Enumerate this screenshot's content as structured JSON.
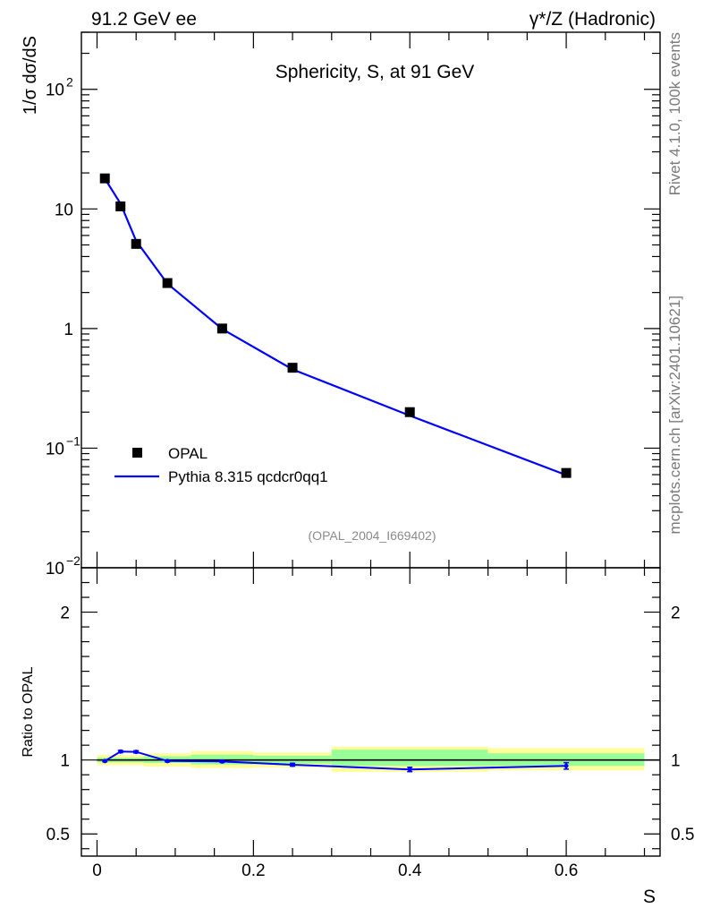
{
  "header": {
    "left": "91.2 GeV ee",
    "right": "γ*/Z (Hadronic)"
  },
  "side_labels": {
    "top": "Rivet 4.1.0,  100k events",
    "bottom": "mcplots.cern.ch [arXiv:2401.10621]"
  },
  "chart_data": [
    {
      "type": "scatter",
      "panel": "main",
      "title": "Sphericity, S, at 91 GeV",
      "ylabel": "1/σ   dσ/dS",
      "yscale": "log",
      "ylim": [
        0.01,
        300
      ],
      "xlim": [
        -0.02,
        0.72
      ],
      "y_ticks": [
        {
          "value": 0.01,
          "label": "10",
          "exp": "−2"
        },
        {
          "value": 0.1,
          "label": "10",
          "exp": "−1"
        },
        {
          "value": 1,
          "label": "1",
          "exp": ""
        },
        {
          "value": 10,
          "label": "10",
          "exp": ""
        },
        {
          "value": 100,
          "label": "10",
          "exp": "2"
        }
      ],
      "watermark": "(OPAL_2004_I669402)",
      "legend": {
        "position": "bottom-left",
        "entries": [
          "OPAL",
          "Pythia 8.315 qcdcr0qq1"
        ]
      },
      "series": [
        {
          "name": "OPAL",
          "kind": "markers",
          "color": "#000000",
          "x": [
            0.01,
            0.03,
            0.05,
            0.09,
            0.16,
            0.25,
            0.4,
            0.6
          ],
          "y": [
            18.0,
            10.5,
            5.1,
            2.4,
            1.0,
            0.47,
            0.2,
            0.062
          ]
        },
        {
          "name": "Pythia 8.315 qcdcr0qq1",
          "kind": "line",
          "color": "#0000ff",
          "x": [
            0.01,
            0.03,
            0.05,
            0.09,
            0.16,
            0.25,
            0.4,
            0.6
          ],
          "y": [
            17.9,
            11.1,
            5.4,
            2.37,
            0.99,
            0.455,
            0.187,
            0.0595
          ]
        }
      ]
    },
    {
      "type": "line",
      "panel": "ratio",
      "ylabel": "Ratio to OPAL",
      "xlabel": "S",
      "ylim": [
        0.35,
        2.3
      ],
      "xlim": [
        -0.02,
        0.72
      ],
      "x_ticks": [
        {
          "value": 0.0,
          "label": "0"
        },
        {
          "value": 0.2,
          "label": "0.2"
        },
        {
          "value": 0.4,
          "label": "0.4"
        },
        {
          "value": 0.6,
          "label": "0.6"
        }
      ],
      "y_ticks": [
        {
          "value": 0.5,
          "label": "0.5"
        },
        {
          "value": 1,
          "label": "1"
        },
        {
          "value": 2,
          "label": "2"
        }
      ],
      "bands": [
        {
          "x0": 0.0,
          "x1": 0.02,
          "inner": [
            0.985,
            1.015
          ],
          "outer": [
            0.965,
            1.035
          ]
        },
        {
          "x0": 0.02,
          "x1": 0.04,
          "inner": [
            0.985,
            1.015
          ],
          "outer": [
            0.965,
            1.035
          ]
        },
        {
          "x0": 0.04,
          "x1": 0.06,
          "inner": [
            0.985,
            1.015
          ],
          "outer": [
            0.965,
            1.035
          ]
        },
        {
          "x0": 0.06,
          "x1": 0.12,
          "inner": [
            0.98,
            1.025
          ],
          "outer": [
            0.955,
            1.045
          ]
        },
        {
          "x0": 0.12,
          "x1": 0.2,
          "inner": [
            0.97,
            1.035
          ],
          "outer": [
            0.945,
            1.06
          ]
        },
        {
          "x0": 0.2,
          "x1": 0.3,
          "inner": [
            0.975,
            1.03
          ],
          "outer": [
            0.95,
            1.05
          ]
        },
        {
          "x0": 0.3,
          "x1": 0.5,
          "inner": [
            0.96,
            1.07
          ],
          "outer": [
            0.92,
            1.09
          ]
        },
        {
          "x0": 0.5,
          "x1": 0.7,
          "inner": [
            0.96,
            1.045
          ],
          "outer": [
            0.93,
            1.08
          ]
        }
      ],
      "band_colors": {
        "inner": "#99ff99",
        "outer": "#ffff99"
      },
      "reference_line": 1.0,
      "series": [
        {
          "name": "Pythia 8.315 qcdcr0qq1",
          "color": "#0000ff",
          "x": [
            0.01,
            0.03,
            0.05,
            0.09,
            0.16,
            0.25,
            0.4,
            0.6
          ],
          "y": [
            0.993,
            1.057,
            1.055,
            0.993,
            0.99,
            0.968,
            0.936,
            0.96
          ],
          "err": [
            0.005,
            0.008,
            0.008,
            0.006,
            0.007,
            0.01,
            0.015,
            0.022
          ]
        }
      ]
    }
  ]
}
